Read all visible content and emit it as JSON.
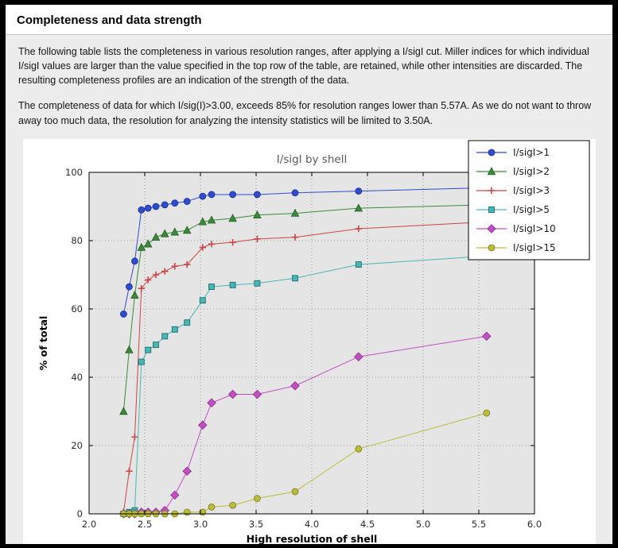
{
  "header": {
    "title": "Completeness and data strength"
  },
  "paragraphs": [
    "The following table lists the completeness in various resolution ranges, after applying a I/sigI cut. Miller indices for which individual I/sigI values are larger than the value specified in the top row of the table, are retained, while other intensities are discarded. The resulting completeness profiles are an indication of the strength of the data.",
    "The completeness of data for which I/sig(I)>3.00, exceeds  85% for resolution ranges lower than 5.57A. As we do not want to throw away too much data, the resolution for analyzing the intensity statistics will be limited to 3.50A."
  ],
  "chart_data": {
    "type": "line",
    "title": "I/sigI by shell",
    "xlabel": "High resolution of shell",
    "ylabel": "% of total",
    "xlim": [
      2.0,
      6.0
    ],
    "ylim": [
      0,
      100
    ],
    "xticks": [
      2.0,
      2.5,
      3.0,
      3.5,
      4.0,
      4.5,
      5.0,
      5.5,
      6.0
    ],
    "yticks": [
      0,
      20,
      40,
      60,
      80,
      100
    ],
    "grid": true,
    "legend_position": "top-right",
    "plot_bg": "#e5e5e5",
    "x": [
      2.31,
      2.36,
      2.41,
      2.47,
      2.53,
      2.6,
      2.68,
      2.77,
      2.88,
      3.02,
      3.1,
      3.29,
      3.51,
      3.85,
      4.42,
      5.57
    ],
    "series": [
      {
        "name": "I/sigI>1",
        "color": "#2f4bce",
        "edge": "#1c2f92",
        "marker": "circle",
        "values": [
          58.5,
          66.5,
          74,
          89,
          89.5,
          90,
          90.5,
          91,
          91.5,
          93,
          93.5,
          93.5,
          93.5,
          94,
          94.5,
          95.5
        ]
      },
      {
        "name": "I/sigI>2",
        "color": "#3a8a3a",
        "edge": "#255c25",
        "marker": "triangle",
        "values": [
          30,
          48,
          64,
          78,
          79,
          81,
          82,
          82.5,
          83,
          85.5,
          86,
          86.5,
          87.5,
          88,
          89.5,
          90.5
        ]
      },
      {
        "name": "I/sigI>3",
        "color": "#cc4444",
        "edge": "#a32e2e",
        "marker": "plus",
        "values": [
          0.5,
          12.5,
          22.5,
          66,
          68.5,
          70,
          71,
          72.5,
          73,
          78,
          79,
          79.5,
          80.5,
          81,
          83.5,
          85.5
        ]
      },
      {
        "name": "I/sigI>5",
        "color": "#49b6b6",
        "edge": "#1f7070",
        "marker": "square",
        "values": [
          0,
          0.5,
          1,
          44.5,
          48,
          49.5,
          52,
          54,
          56,
          62.5,
          66.5,
          67,
          67.5,
          69,
          73,
          75.5
        ]
      },
      {
        "name": "I/sigI>10",
        "color": "#c24fc2",
        "edge": "#8a2f8a",
        "marker": "diamond",
        "values": [
          0,
          0,
          0,
          0.5,
          0.5,
          0.5,
          1,
          5.5,
          12.5,
          26,
          32.5,
          35,
          35,
          37.5,
          46,
          52
        ]
      },
      {
        "name": "I/sigI>15",
        "color": "#bcbc3c",
        "edge": "#7a7a1f",
        "marker": "circle",
        "values": [
          0,
          0,
          0,
          0,
          0,
          0,
          0,
          0,
          0.5,
          0.5,
          2,
          2.5,
          4.5,
          6.5,
          19,
          29.5
        ]
      }
    ]
  }
}
